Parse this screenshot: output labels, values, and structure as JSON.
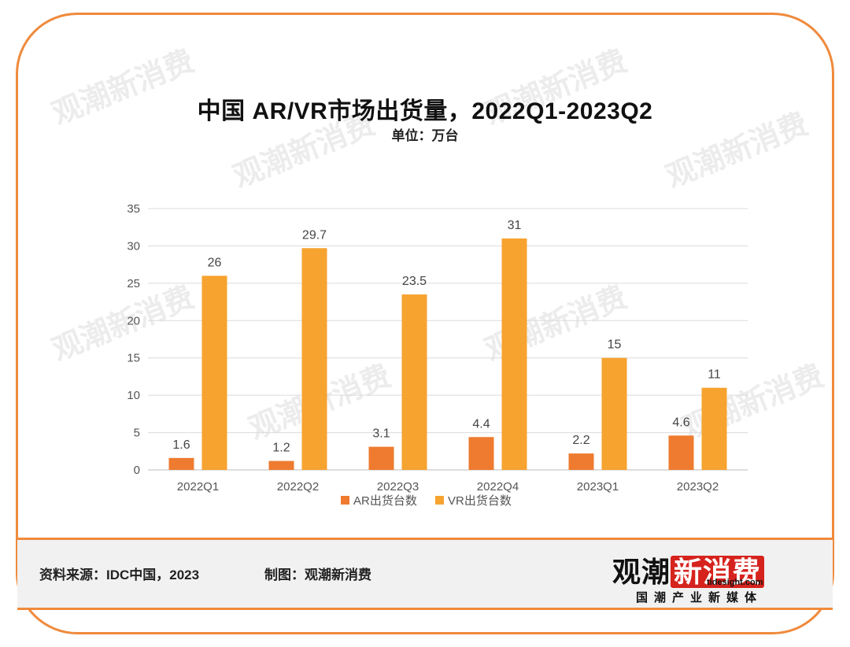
{
  "header": {
    "title": "中国  AR/VR市场出货量，2022Q1-2023Q2",
    "subtitle": "单位：万台"
  },
  "footer": {
    "source": "资料来源：IDC中国，2023",
    "maker": "制图：观潮新消费",
    "logo_main_dark": "观潮",
    "logo_main_red": "新消费",
    "logo_site": "tidesight.com",
    "logo_tag": "国潮产业新媒体"
  },
  "watermark": {
    "text": "观潮新消费"
  },
  "colors": {
    "frame": "#ef8a3c",
    "ar": "#ee7b2f",
    "vr": "#f6a330"
  },
  "chart_data": {
    "type": "bar",
    "categories": [
      "2022Q1",
      "2022Q2",
      "2022Q3",
      "2022Q4",
      "2023Q1",
      "2023Q2"
    ],
    "series": [
      {
        "name": "AR出货台数",
        "values": [
          1.6,
          1.2,
          3.1,
          4.4,
          2.2,
          4.6
        ],
        "color": "#ee7b2f"
      },
      {
        "name": "VR出货台数",
        "values": [
          26,
          29.7,
          23.5,
          31,
          15,
          11
        ],
        "color": "#f6a330"
      }
    ],
    "ylim": [
      0,
      35
    ],
    "yticks": [
      0,
      5,
      10,
      15,
      20,
      25,
      30,
      35
    ],
    "grid": true,
    "legend": "bottom"
  }
}
